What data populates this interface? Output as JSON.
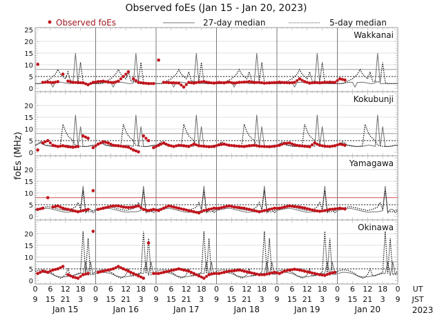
{
  "chart_data": {
    "type": "scatter",
    "title": "Observed foEs (Jan 15 - Jan 20, 2023)",
    "ylabel": "foEs (MHz)",
    "ylim": [
      0,
      25
    ],
    "grid": true,
    "legend": {
      "position": "top",
      "entries": [
        {
          "label": "Observed foEs",
          "style": "red-dot"
        },
        {
          "label": "27-day median",
          "style": "solid-gray"
        },
        {
          "label": "5-day median",
          "style": "dotted-black"
        }
      ]
    },
    "y_ticks_top": [
      "0",
      "5",
      "10",
      "15",
      "20",
      "25"
    ],
    "y_ticks": [
      "0",
      "5",
      "10",
      "15",
      "20"
    ],
    "x_ticks_ut": [
      "0",
      "6",
      "12",
      "18"
    ],
    "x_ticks_jst": [
      "9",
      "15",
      "21",
      "3"
    ],
    "x_end_ut": "0",
    "x_end_jst": "9",
    "ut_label": "UT",
    "jst_label": "JST",
    "days": [
      "Jan 15",
      "Jan 16",
      "Jan 17",
      "Jan 18",
      "Jan 19",
      "Jan 20"
    ],
    "year": "2023",
    "observed_step_hours": 2,
    "median_step_hours": 1,
    "colors": {
      "observed": "#c0141c",
      "median27": "#6e6e6e",
      "median5": "#111111",
      "grid": "#d8d8d8",
      "red_ref": "#d05050"
    },
    "stations": [
      {
        "name": "Wakkanai",
        "ref_line": 8,
        "ref_color": "#999999",
        "dotted_ref": 5,
        "median27_daily": [
          2,
          2,
          2,
          2.2,
          2.4,
          2.6,
          2.5,
          0.5,
          2.5,
          2.5,
          2.6,
          2.4,
          2.2,
          2,
          2,
          2.3,
          15,
          2,
          2,
          2,
          2,
          2,
          2,
          2
        ],
        "median5_daily": [
          2,
          2,
          2,
          2.5,
          3,
          3.5,
          4,
          5,
          6,
          8,
          6,
          5,
          4,
          7,
          3,
          3,
          2.5,
          3,
          11,
          2.5,
          2,
          2,
          2,
          2
        ],
        "observed": [
          10.2,
          2.5,
          2.6,
          2.4,
          2.8,
          6,
          3,
          2.5,
          2.4,
          2.3,
          1.5,
          2.5,
          2.8,
          3,
          2.6,
          2.4,
          3,
          5,
          7,
          4,
          2.5,
          2.2,
          2.0,
          2.0,
          12,
          2.5,
          2.4,
          2.3,
          2.2,
          0.5,
          2.5,
          2.2,
          2.6,
          2.8,
          2.4,
          2.2,
          2.5,
          2.3,
          2.6,
          2.2,
          2.5,
          2.6,
          2.8,
          2.4,
          2.5,
          2.2,
          2.3,
          2.4,
          2.6,
          2.4,
          2.3,
          2.5,
          4,
          2.8,
          2.2,
          2.4,
          2.3,
          2.5,
          2.6,
          2.5,
          4,
          3.5,
          null,
          null,
          null,
          null,
          null,
          null,
          null,
          null,
          null,
          null
        ]
      },
      {
        "name": "Kokubunji",
        "ref_line": 8,
        "ref_color": "#999999",
        "dotted_ref": 5,
        "median27_daily": [
          3,
          3.5,
          4,
          3.5,
          3,
          3,
          2.8,
          2.6,
          2.5,
          2.5,
          2.6,
          2.8,
          3,
          3,
          2.8,
          2.5,
          16,
          2.5,
          11,
          2.5,
          2.5,
          2.6,
          2.8,
          3
        ],
        "median5_daily": [
          3,
          3.5,
          4.5,
          4,
          3,
          2.8,
          2.6,
          2.5,
          2.5,
          2.6,
          3,
          12,
          9,
          7,
          6,
          5,
          3,
          2.8,
          2.6,
          2.5,
          2.5,
          2.6,
          2.8,
          3
        ],
        "observed": [
          1,
          4,
          5,
          3,
          2.5,
          2.8,
          2.4,
          2.2,
          2.5,
          7,
          6,
          2,
          3.5,
          4.5,
          4,
          3,
          2.8,
          2.5,
          2.2,
          1.0,
          0.2,
          7,
          5,
          2,
          3,
          4,
          3,
          2.5,
          3,
          2.8,
          2.5,
          3.5,
          2.8,
          2.6,
          2.4,
          2.5,
          3.2,
          3.5,
          3,
          2.8,
          2.6,
          2.5,
          2.8,
          3,
          2.6,
          2.5,
          2.4,
          2.6,
          3,
          3.8,
          4,
          3.2,
          2.8,
          2.6,
          2.4,
          4,
          3,
          2.6,
          2.5,
          2.8,
          3.5,
          3,
          null,
          null,
          null,
          null,
          null,
          null,
          null,
          null,
          null,
          null
        ]
      },
      {
        "name": "Yamagawa",
        "ref_line": 8,
        "ref_color": "#d05050",
        "dotted_ref": 5,
        "median27_daily": [
          2.5,
          2.8,
          3,
          3.2,
          3.4,
          3.5,
          3.3,
          3,
          2.8,
          2.5,
          2.2,
          2,
          1.8,
          1.8,
          2,
          2,
          2,
          2.2,
          2.5,
          13,
          1.5,
          3,
          3,
          1.5
        ],
        "median5_daily": [
          3,
          3.2,
          3.5,
          3.8,
          4,
          4.2,
          4,
          3.8,
          3.5,
          3.2,
          3,
          2.8,
          2.5,
          2.8,
          3,
          3.5,
          4,
          6,
          3,
          11,
          2,
          2,
          2,
          2.5
        ],
        "observed": [
          3,
          3.5,
          8,
          4,
          4.5,
          3.5,
          3,
          2.5,
          2,
          2.5,
          3,
          11,
          3,
          3.5,
          4,
          4.5,
          4.5,
          4,
          3.8,
          4,
          4.5,
          3,
          2.5,
          3,
          2.5,
          3.5,
          4.5,
          4,
          3.5,
          3,
          2.5,
          2,
          1.5,
          2.5,
          3,
          3.5,
          3.5,
          4,
          4.5,
          4,
          3.8,
          3.5,
          3,
          2.5,
          2,
          2.5,
          3,
          3.5,
          3.5,
          4,
          4.5,
          4.2,
          4,
          3.6,
          3,
          2.5,
          2.2,
          2.5,
          3,
          3.2,
          3.5,
          3.2,
          null,
          null,
          null,
          null,
          null,
          null,
          null,
          null,
          null,
          null
        ]
      },
      {
        "name": "Okinawa",
        "ref_line": 8,
        "ref_color": "#999999",
        "dotted_ref": 5,
        "median27_daily": [
          3,
          3.2,
          3.5,
          3.5,
          3.4,
          3.2,
          3,
          2.5,
          2,
          1.8,
          1.5,
          1.5,
          1.6,
          1.8,
          2,
          2.2,
          2.5,
          2.8,
          3,
          3,
          8,
          2,
          8,
          2.5
        ],
        "median5_daily": [
          4,
          4.2,
          4.5,
          4.5,
          4.4,
          4,
          3.5,
          3,
          2,
          1.5,
          1,
          1.5,
          2.5,
          5,
          2,
          2,
          2.5,
          3,
          3.5,
          21,
          3,
          18,
          2.5,
          3
        ],
        "observed": [
          3,
          4,
          3.5,
          4.5,
          5,
          6,
          2.5,
          1.5,
          1,
          2.5,
          3,
          21,
          3.5,
          4,
          4.5,
          5,
          6,
          5,
          4,
          3,
          2,
          1,
          16,
          3,
          3,
          3.5,
          4,
          4.5,
          5,
          4.5,
          4,
          3,
          2,
          1,
          2.5,
          3,
          3,
          3.5,
          4,
          4.2,
          4.5,
          4,
          3.5,
          3,
          2.5,
          2.5,
          3,
          3.5,
          3,
          4,
          4.5,
          4.8,
          4.5,
          4,
          3.5,
          3,
          2.5,
          2.2,
          3,
          3.5,
          null,
          null,
          null,
          null,
          null,
          null,
          null,
          null,
          null,
          null,
          null,
          null
        ]
      }
    ]
  }
}
